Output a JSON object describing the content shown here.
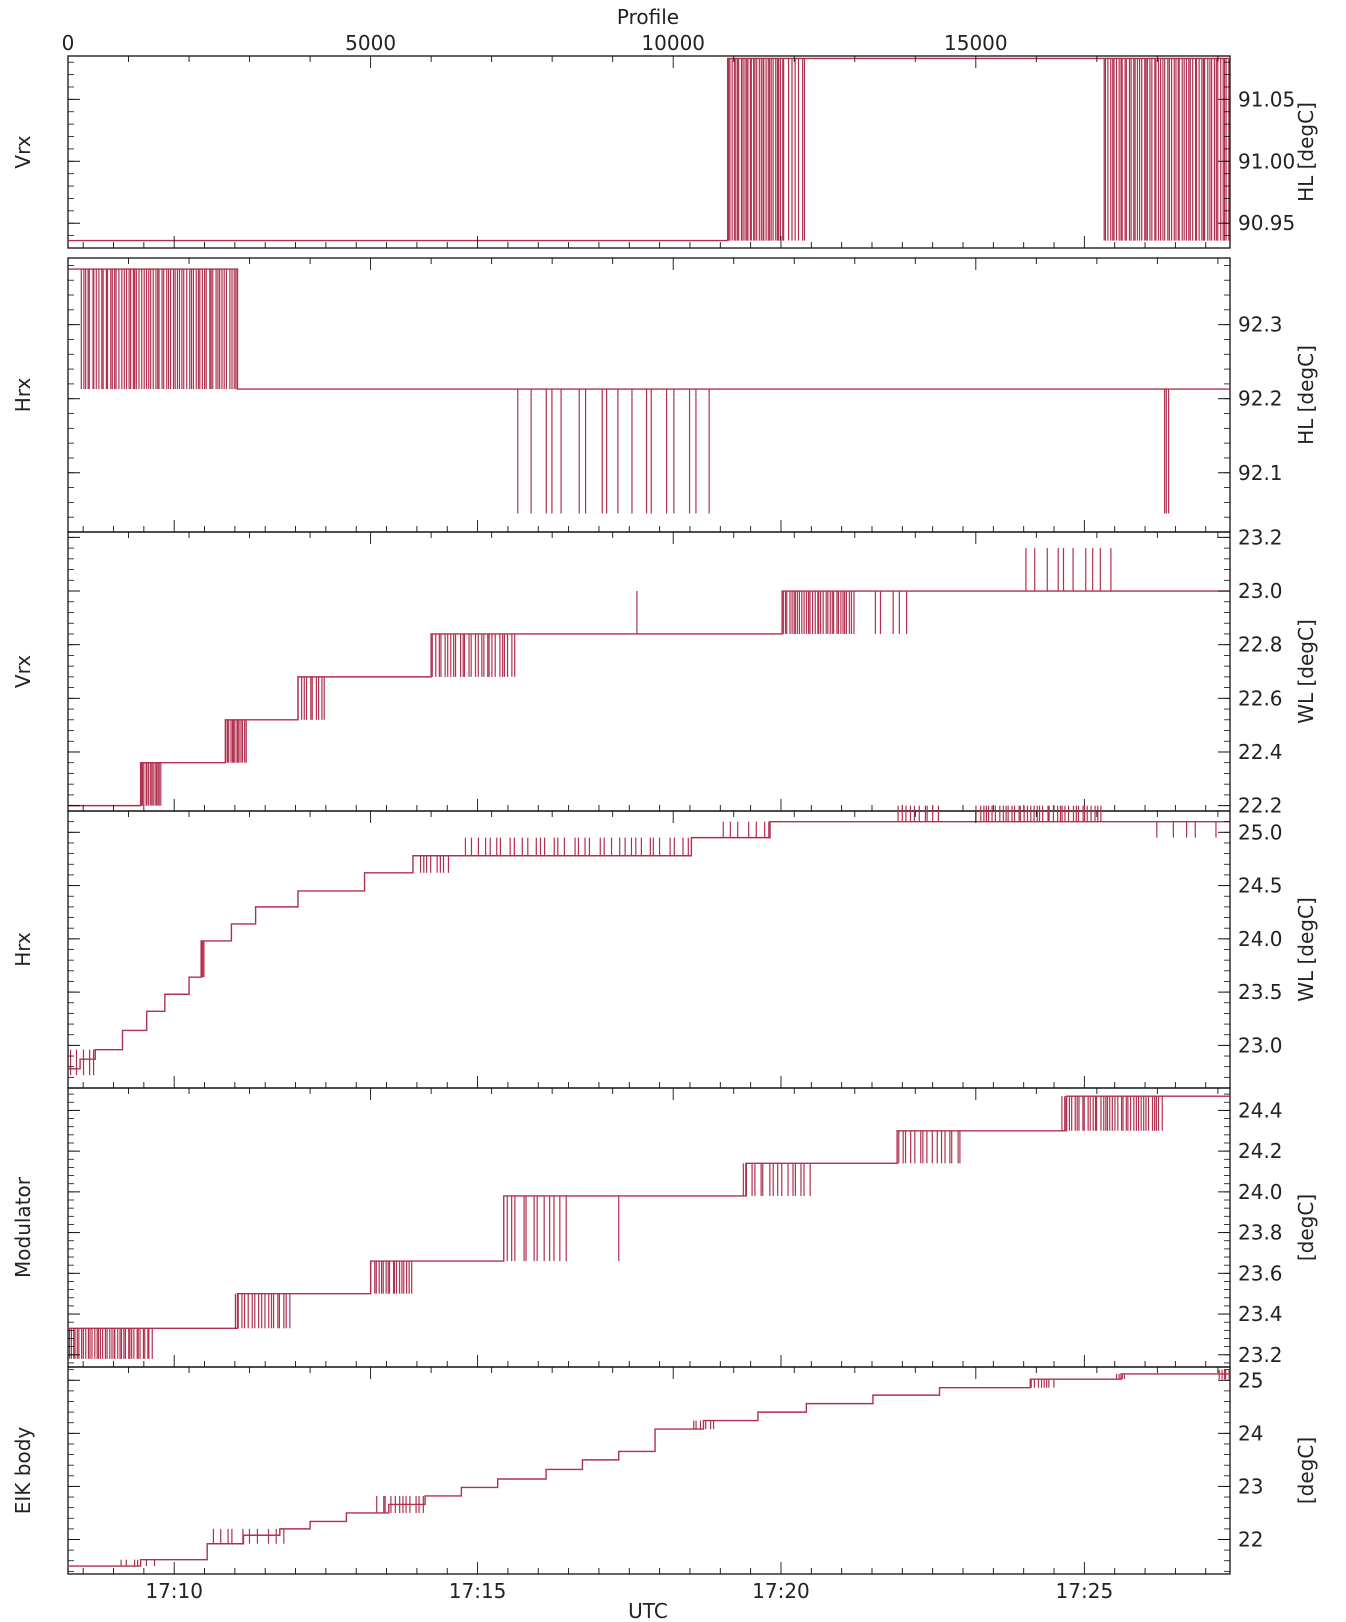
{
  "chart_data": {
    "type": "line",
    "top_axis": {
      "label": "Profile",
      "range": [
        0,
        19200
      ],
      "ticks": [
        0,
        5000,
        10000,
        15000
      ],
      "tick_labels": [
        "0",
        "5000",
        "10000",
        "15000"
      ]
    },
    "bottom_axis": {
      "label": "UTC",
      "range_minutes": [
        -1.75,
        17.4
      ],
      "ticks_minutes": [
        0,
        5,
        10,
        15
      ],
      "tick_labels": [
        "17:10",
        "17:15",
        "17:20",
        "17:25"
      ]
    },
    "series_color": "#b0304f",
    "panels": [
      {
        "left_label": "Vrx",
        "right_label": "HL [degC]",
        "ylim": [
          90.93,
          91.085
        ],
        "yticks": [
          90.95,
          91.0,
          91.05
        ],
        "ytick_labels": [
          "90.95",
          "91.00",
          "91.05"
        ],
        "steps": [
          [
            0,
            90.936
          ],
          [
            10900,
            91.083
          ]
        ],
        "noise": [
          {
            "x_start": 10900,
            "x_end": 11850,
            "count": 32,
            "low": 90.936,
            "high": 91.083
          },
          {
            "x_start": 11900,
            "x_end": 12200,
            "count": 6,
            "low": 90.936,
            "high": 91.083
          },
          {
            "x_start": 17100,
            "x_end": 19200,
            "count": 60,
            "low": 90.936,
            "high": 91.083
          }
        ]
      },
      {
        "left_label": "Hrx",
        "right_label": "HL [degC]",
        "ylim": [
          92.02,
          92.39
        ],
        "yticks": [
          92.1,
          92.2,
          92.3
        ],
        "ytick_labels": [
          "92.1",
          "92.2",
          "92.3"
        ],
        "steps": [
          [
            0,
            92.375
          ],
          [
            2800,
            92.213
          ]
        ],
        "noise": [
          {
            "x_start": 200,
            "x_end": 2800,
            "count": 70,
            "low": 92.213,
            "high": 92.375
          },
          {
            "x_start": 7400,
            "x_end": 10700,
            "count": 18,
            "low": 92.045,
            "high": 92.213
          },
          {
            "x_start": 18100,
            "x_end": 18200,
            "count": 3,
            "low": 92.045,
            "high": 92.213
          }
        ]
      },
      {
        "left_label": "Vrx",
        "right_label": "WL [degC]",
        "ylim": [
          22.18,
          23.22
        ],
        "yticks": [
          22.2,
          22.4,
          22.6,
          22.8,
          23.0,
          23.2
        ],
        "ytick_labels": [
          "22.2",
          "22.4",
          "22.6",
          "22.8",
          "23.0",
          "23.2"
        ],
        "steps": [
          [
            0,
            22.2
          ],
          [
            1200,
            22.36
          ],
          [
            2600,
            22.52
          ],
          [
            3800,
            22.68
          ],
          [
            6000,
            22.84
          ],
          [
            11800,
            23.0
          ]
        ],
        "noise": [
          {
            "x_start": 1200,
            "x_end": 1550,
            "count": 14,
            "low": 22.2,
            "high": 22.36
          },
          {
            "x_start": 2600,
            "x_end": 2950,
            "count": 14,
            "low": 22.36,
            "high": 22.52
          },
          {
            "x_start": 3800,
            "x_end": 4250,
            "count": 10,
            "low": 22.52,
            "high": 22.68
          },
          {
            "x_start": 6000,
            "x_end": 7400,
            "count": 28,
            "low": 22.68,
            "high": 22.84
          },
          {
            "x_start": 9400,
            "x_end": 9450,
            "count": 1,
            "low": 22.84,
            "high": 23.0
          },
          {
            "x_start": 11800,
            "x_end": 13000,
            "count": 34,
            "low": 22.84,
            "high": 23.0
          },
          {
            "x_start": 13300,
            "x_end": 13900,
            "count": 5,
            "low": 22.84,
            "high": 23.0
          },
          {
            "x_start": 15800,
            "x_end": 17300,
            "count": 10,
            "low": 23.0,
            "high": 23.16
          }
        ]
      },
      {
        "left_label": "Hrx",
        "right_label": "WL [degC]",
        "ylim": [
          22.6,
          25.2
        ],
        "yticks": [
          23.0,
          23.5,
          24.0,
          24.5,
          25.0
        ],
        "ytick_labels": [
          "23.0",
          "23.5",
          "24.0",
          "24.5",
          "25.0"
        ],
        "steps": [
          [
            0,
            22.78
          ],
          [
            200,
            22.87
          ],
          [
            450,
            22.96
          ],
          [
            900,
            23.14
          ],
          [
            1300,
            23.32
          ],
          [
            1600,
            23.48
          ],
          [
            2000,
            23.64
          ],
          [
            2200,
            23.98
          ],
          [
            2700,
            24.14
          ],
          [
            3100,
            24.3
          ],
          [
            3800,
            24.45
          ],
          [
            4900,
            24.62
          ],
          [
            5700,
            24.78
          ],
          [
            10300,
            24.95
          ],
          [
            11600,
            25.1
          ]
        ],
        "noise": [
          {
            "x_start": 0,
            "x_end": 500,
            "count": 5,
            "low": 22.72,
            "high": 22.96
          },
          {
            "x_start": 2200,
            "x_end": 2250,
            "count": 4,
            "low": 23.64,
            "high": 23.98
          },
          {
            "x_start": 5800,
            "x_end": 6300,
            "count": 8,
            "low": 24.62,
            "high": 24.78
          },
          {
            "x_start": 6500,
            "x_end": 10300,
            "count": 36,
            "low": 24.78,
            "high": 24.95
          },
          {
            "x_start": 10800,
            "x_end": 11700,
            "count": 7,
            "low": 24.95,
            "high": 25.1
          },
          {
            "x_start": 13700,
            "x_end": 14400,
            "count": 10,
            "low": 25.1,
            "high": 25.25
          },
          {
            "x_start": 15000,
            "x_end": 17100,
            "count": 40,
            "low": 25.1,
            "high": 25.25
          },
          {
            "x_start": 17900,
            "x_end": 19100,
            "count": 5,
            "low": 24.95,
            "high": 25.1
          }
        ]
      },
      {
        "left_label": "Modulator",
        "right_label": "[degC]",
        "ylim": [
          23.14,
          24.51
        ],
        "yticks": [
          23.2,
          23.4,
          23.6,
          23.8,
          24.0,
          24.2,
          24.4
        ],
        "ytick_labels": [
          "23.2",
          "23.4",
          "23.6",
          "23.8",
          "24.0",
          "24.2",
          "24.4"
        ],
        "steps": [
          [
            0,
            23.33
          ],
          [
            2800,
            23.5
          ],
          [
            5000,
            23.66
          ],
          [
            7200,
            23.98
          ],
          [
            11200,
            24.14
          ],
          [
            13700,
            24.3
          ],
          [
            16500,
            24.47
          ]
        ],
        "noise": [
          {
            "x_start": 0,
            "x_end": 1400,
            "count": 40,
            "low": 23.18,
            "high": 23.33
          },
          {
            "x_start": 2750,
            "x_end": 3700,
            "count": 18,
            "low": 23.33,
            "high": 23.5
          },
          {
            "x_start": 5000,
            "x_end": 5700,
            "count": 18,
            "low": 23.5,
            "high": 23.66
          },
          {
            "x_start": 7200,
            "x_end": 8300,
            "count": 12,
            "low": 23.66,
            "high": 23.98
          },
          {
            "x_start": 9100,
            "x_end": 9150,
            "count": 1,
            "low": 23.66,
            "high": 23.98
          },
          {
            "x_start": 11100,
            "x_end": 12300,
            "count": 16,
            "low": 23.98,
            "high": 24.14
          },
          {
            "x_start": 13700,
            "x_end": 14800,
            "count": 16,
            "low": 24.14,
            "high": 24.3
          },
          {
            "x_start": 16400,
            "x_end": 18100,
            "count": 40,
            "low": 24.3,
            "high": 24.47
          }
        ]
      },
      {
        "left_label": "EIK body",
        "right_label": "[degC]",
        "ylim": [
          21.35,
          25.25
        ],
        "yticks": [
          22,
          23,
          24,
          25
        ],
        "ytick_labels": [
          "22",
          "23",
          "24",
          "25"
        ],
        "steps": [
          [
            0,
            21.5
          ],
          [
            1200,
            21.62
          ],
          [
            2300,
            21.92
          ],
          [
            2900,
            22.08
          ],
          [
            3500,
            22.2
          ],
          [
            4000,
            22.34
          ],
          [
            4600,
            22.5
          ],
          [
            5300,
            22.66
          ],
          [
            5900,
            22.82
          ],
          [
            6500,
            22.98
          ],
          [
            7100,
            23.14
          ],
          [
            7900,
            23.32
          ],
          [
            8500,
            23.5
          ],
          [
            9100,
            23.66
          ],
          [
            9700,
            24.08
          ],
          [
            10500,
            24.24
          ],
          [
            11400,
            24.4
          ],
          [
            12200,
            24.56
          ],
          [
            13300,
            24.72
          ],
          [
            14400,
            24.86
          ],
          [
            15900,
            25.02
          ],
          [
            17400,
            25.12
          ]
        ],
        "noise": [
          {
            "x_start": 800,
            "x_end": 1500,
            "count": 6,
            "low": 21.5,
            "high": 21.62
          },
          {
            "x_start": 2300,
            "x_end": 3600,
            "count": 10,
            "low": 21.92,
            "high": 22.2
          },
          {
            "x_start": 5100,
            "x_end": 5900,
            "count": 12,
            "low": 22.5,
            "high": 22.82
          },
          {
            "x_start": 10300,
            "x_end": 10700,
            "count": 6,
            "low": 24.08,
            "high": 24.24
          },
          {
            "x_start": 15900,
            "x_end": 16300,
            "count": 8,
            "low": 24.86,
            "high": 25.02
          },
          {
            "x_start": 17300,
            "x_end": 17500,
            "count": 4,
            "low": 25.02,
            "high": 25.12
          },
          {
            "x_start": 19000,
            "x_end": 19200,
            "count": 5,
            "low": 25.02,
            "high": 25.2
          }
        ]
      }
    ]
  }
}
